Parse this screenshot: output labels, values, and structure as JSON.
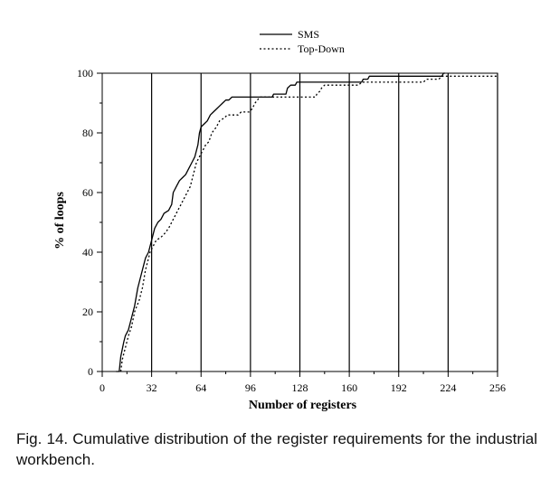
{
  "chart_data": {
    "type": "line",
    "title": "",
    "xlabel": "Number of registers",
    "ylabel": "% of loops",
    "xlim": [
      0,
      256
    ],
    "ylim": [
      0,
      100
    ],
    "xticks": [
      0,
      32,
      64,
      96,
      128,
      160,
      192,
      224,
      256
    ],
    "yticks": [
      0,
      20,
      40,
      60,
      80,
      100
    ],
    "vertical_gridlines": [
      32,
      64,
      96,
      128,
      160,
      192,
      224,
      256
    ],
    "legend_position": "top-center",
    "series": [
      {
        "name": "SMS",
        "style": "solid",
        "points": [
          [
            9,
            0
          ],
          [
            11,
            0
          ],
          [
            12,
            5
          ],
          [
            14,
            10
          ],
          [
            15,
            12
          ],
          [
            17,
            14
          ],
          [
            19,
            18
          ],
          [
            21,
            22
          ],
          [
            23,
            28
          ],
          [
            25,
            32
          ],
          [
            27,
            36
          ],
          [
            28,
            38
          ],
          [
            30,
            40
          ],
          [
            32,
            44
          ],
          [
            34,
            48
          ],
          [
            36,
            50
          ],
          [
            38,
            51
          ],
          [
            40,
            53
          ],
          [
            43,
            54
          ],
          [
            45,
            56
          ],
          [
            46,
            60
          ],
          [
            48,
            62
          ],
          [
            50,
            64
          ],
          [
            52,
            65
          ],
          [
            54,
            66
          ],
          [
            56,
            68
          ],
          [
            58,
            70
          ],
          [
            60,
            72
          ],
          [
            62,
            76
          ],
          [
            63,
            80
          ],
          [
            64,
            82
          ],
          [
            66,
            83
          ],
          [
            68,
            84
          ],
          [
            70,
            86
          ],
          [
            72,
            87
          ],
          [
            74,
            88
          ],
          [
            76,
            89
          ],
          [
            78,
            90
          ],
          [
            80,
            91
          ],
          [
            82,
            91
          ],
          [
            84,
            92
          ],
          [
            87,
            92
          ],
          [
            89,
            92
          ],
          [
            110,
            92
          ],
          [
            111,
            93
          ],
          [
            119,
            93
          ],
          [
            120,
            95
          ],
          [
            122,
            96
          ],
          [
            125,
            96
          ],
          [
            126,
            97
          ],
          [
            168,
            97
          ],
          [
            169,
            98
          ],
          [
            172,
            98
          ],
          [
            173,
            99
          ],
          [
            220,
            99
          ],
          [
            221,
            100
          ],
          [
            222,
            100
          ]
        ]
      },
      {
        "name": "Top-Down",
        "style": "dotted",
        "points": [
          [
            12,
            0
          ],
          [
            13,
            4
          ],
          [
            15,
            8
          ],
          [
            17,
            12
          ],
          [
            19,
            15
          ],
          [
            21,
            20
          ],
          [
            24,
            24
          ],
          [
            26,
            28
          ],
          [
            28,
            34
          ],
          [
            31,
            40
          ],
          [
            33,
            42
          ],
          [
            35,
            44
          ],
          [
            38,
            45
          ],
          [
            40,
            46
          ],
          [
            43,
            48
          ],
          [
            45,
            50
          ],
          [
            47,
            52
          ],
          [
            49,
            54
          ],
          [
            51,
            56
          ],
          [
            53,
            58
          ],
          [
            55,
            60
          ],
          [
            57,
            62
          ],
          [
            59,
            66
          ],
          [
            61,
            70
          ],
          [
            63,
            72
          ],
          [
            65,
            74
          ],
          [
            67,
            76
          ],
          [
            69,
            77
          ],
          [
            71,
            80
          ],
          [
            74,
            82
          ],
          [
            76,
            84
          ],
          [
            79,
            85
          ],
          [
            81,
            86
          ],
          [
            83,
            86
          ],
          [
            88,
            86
          ],
          [
            90,
            87
          ],
          [
            95,
            87
          ],
          [
            97,
            88
          ],
          [
            99,
            90
          ],
          [
            102,
            92
          ],
          [
            138,
            92
          ],
          [
            139,
            93
          ],
          [
            141,
            94
          ],
          [
            142,
            95
          ],
          [
            144,
            96
          ],
          [
            151,
            96
          ],
          [
            166,
            96
          ],
          [
            168,
            97
          ],
          [
            208,
            97
          ],
          [
            210,
            98
          ],
          [
            218,
            98
          ],
          [
            220,
            99
          ],
          [
            228,
            99
          ],
          [
            256,
            99
          ]
        ]
      }
    ]
  },
  "caption": {
    "text": "Fig. 14. Cumulative distribution of the register requirements for the industrial workbench."
  }
}
